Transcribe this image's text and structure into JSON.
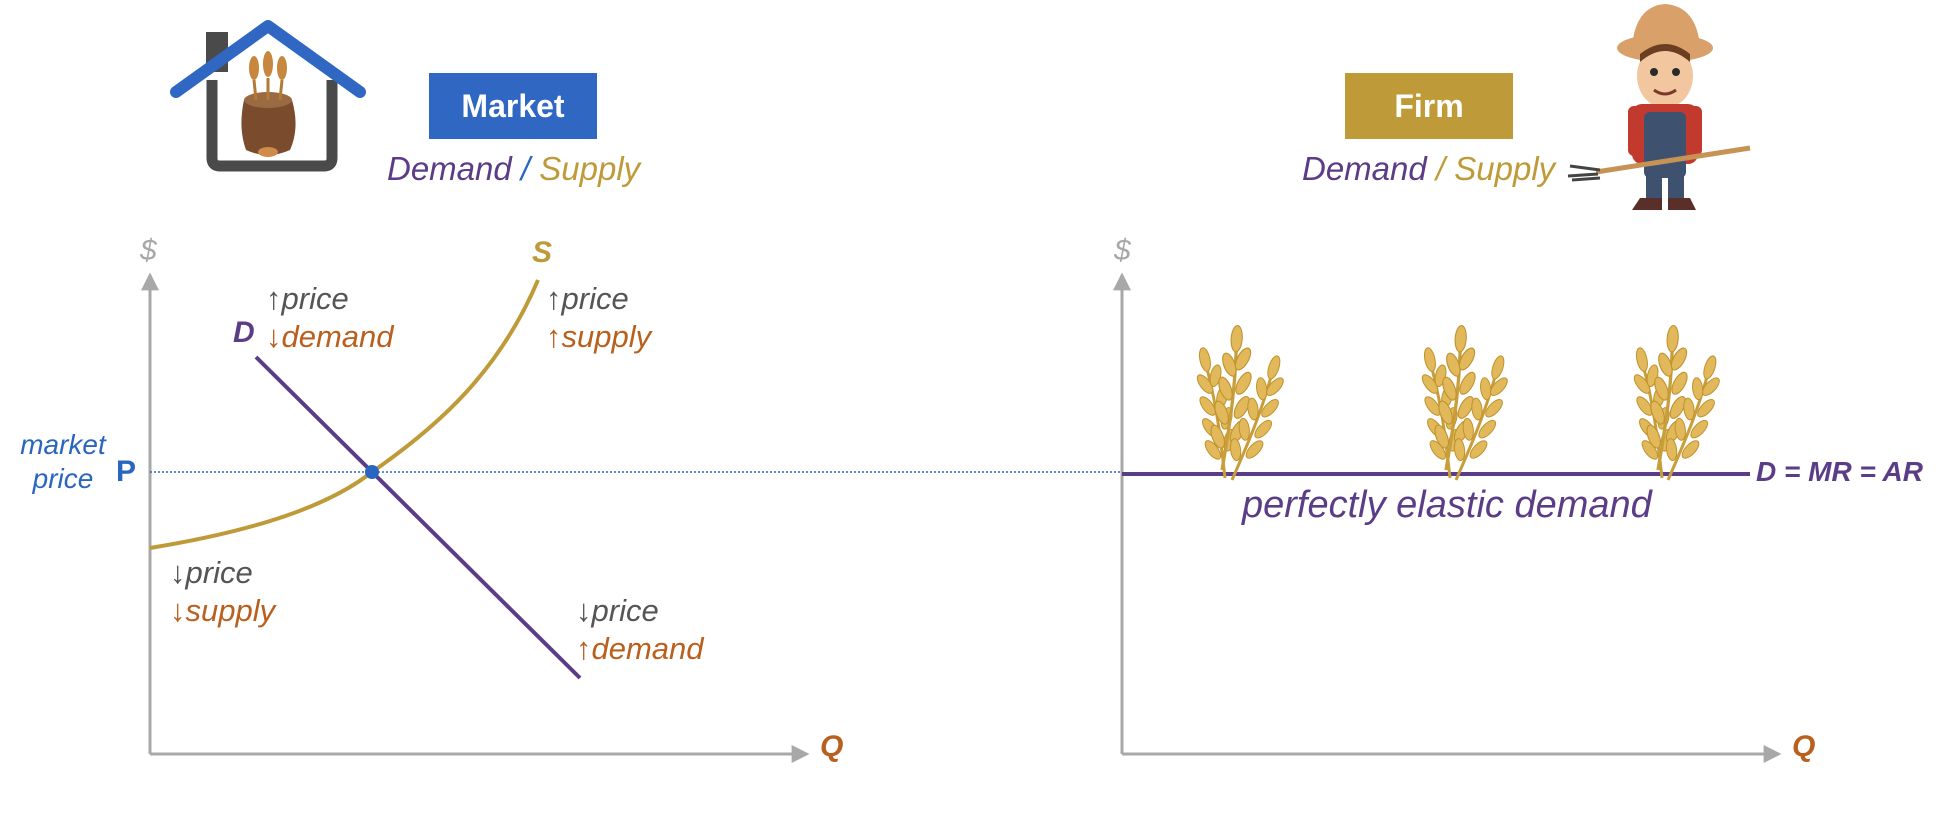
{
  "market": {
    "title": "Market",
    "sub_demand": "Demand",
    "sub_sep": "/",
    "sub_supply": "Supply",
    "axis_y": "$",
    "axis_x": "Q",
    "supply_label": "S",
    "demand_label": "D",
    "price_label": "P",
    "market_price_line1": "market",
    "market_price_line2": "price",
    "notes": {
      "demand_up_price": "price",
      "demand_down_demand": "demand",
      "supply_up_price": "price",
      "supply_up_supply": "supply",
      "supply_down_price": "price",
      "supply_down_supply": "supply",
      "demand_down_price": "price",
      "demand_up_demand": "demand"
    },
    "arrows": {
      "up": "↑",
      "down": "↓"
    }
  },
  "firm": {
    "title": "Firm",
    "sub_demand": "Demand",
    "sub_sep": "/",
    "sub_supply": "Supply",
    "axis_y": "$",
    "axis_x": "Q",
    "curve_label": "D = MR = AR",
    "curve_caption": "perfectly elastic demand"
  },
  "colors": {
    "market_box": "#2f67c3",
    "firm_box": "#bf9a38",
    "demand": "#5b3c86",
    "supply": "#bf9a38",
    "price_blue": "#2a66c0",
    "axis": "#a8a8a8",
    "quantity": "#b9601f"
  },
  "icons": [
    "house-grain-sack-icon",
    "farmer-with-pitchfork-icon",
    "wheat-icon"
  ]
}
